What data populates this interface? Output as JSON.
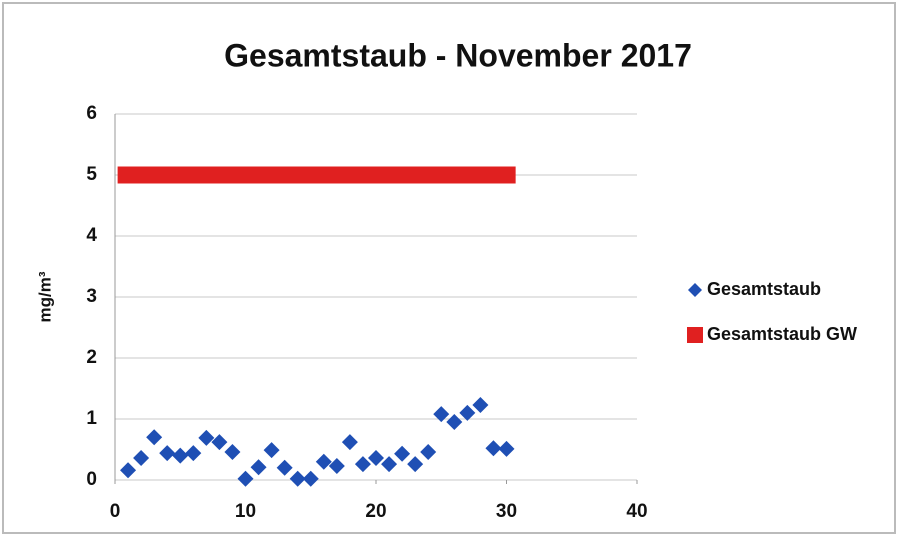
{
  "chart_data": {
    "type": "scatter",
    "title": "Gesamtstaub -  November 2017",
    "y_label": "mg/m³",
    "xlim": [
      0,
      40
    ],
    "xticks": [
      0,
      10,
      20,
      30,
      40
    ],
    "ylim": [
      0,
      6
    ],
    "yticks": [
      0,
      1,
      2,
      3,
      4,
      5,
      6
    ],
    "grid": true,
    "legend": "right",
    "series": [
      {
        "name": "Gesamtstaub",
        "color": "#1f4fb4",
        "marker": "diamond",
        "x": [
          1,
          2,
          3,
          4,
          5,
          6,
          7,
          8,
          9,
          10,
          11,
          12,
          13,
          14,
          15,
          16,
          17,
          18,
          19,
          20,
          21,
          22,
          23,
          24,
          25,
          26,
          27,
          28,
          29,
          30
        ],
        "values": [
          0.16,
          0.36,
          0.7,
          0.44,
          0.4,
          0.44,
          0.69,
          0.62,
          0.46,
          0.02,
          0.21,
          0.49,
          0.2,
          0.02,
          0.02,
          0.3,
          0.23,
          0.62,
          0.26,
          0.36,
          0.26,
          0.43,
          0.26,
          0.46,
          1.08,
          0.95,
          1.1,
          1.23,
          0.52,
          0.51
        ]
      },
      {
        "name": "Gesamtstaub GW",
        "color": "#e02020",
        "marker": "line",
        "x": [
          0.2,
          30.7
        ],
        "values": [
          5,
          5
        ]
      }
    ]
  }
}
